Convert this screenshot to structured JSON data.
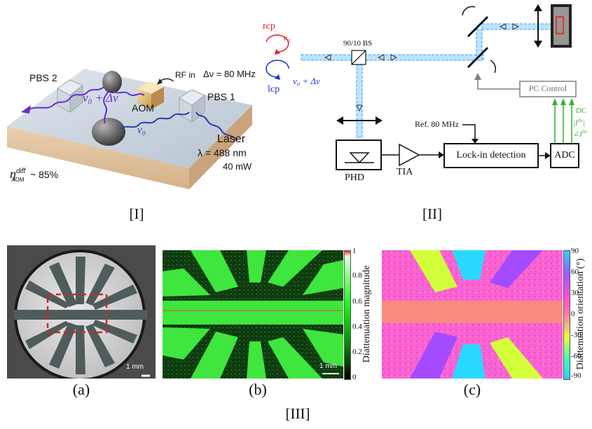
{
  "panel_I": {
    "caption": "[I]",
    "labels": {
      "pbs2": "PBS 2",
      "pbs1": "PBS 1",
      "aom": "AOM",
      "rf_in": "RF in",
      "delta_nu": "Δν = 80 MHz",
      "nu0_plus": "ν₀ + Δν",
      "nu0": "ν₀",
      "laser": "Laser",
      "lambda": "λ = 488 nm",
      "power": "40 mW",
      "eta": "η",
      "eta_sup": "diff",
      "eta_sub": "AOM",
      "eta_val": "~ 85%"
    }
  },
  "panel_II": {
    "caption": "[II]",
    "labels": {
      "rcp": "rcp",
      "lcp": "lcp",
      "nu0": "ν₀",
      "nu0_plus": "ν₀ + Δν",
      "bs": "90/10 BS",
      "pc_control": "PC Control",
      "ref": "Ref. 80 MHz",
      "lockin": "Lock-in detection",
      "adc": "ADC",
      "phd": "PHD",
      "tia": "TIA",
      "dc": "DC",
      "amp": "|I",
      "amp_sup": "Δν",
      "phase": "∠I",
      "phase_sup": "Δν"
    }
  },
  "panel_III": {
    "caption": "[III]",
    "sub_a": "(a)",
    "sub_b": "(b)",
    "sub_c": "(c)",
    "scale_a": "1 mm",
    "scale_b": "1 mm",
    "cbar_b": {
      "label": "Diattenuation magnitude",
      "ticks": [
        "1",
        "0.8",
        "0.6",
        "0.4",
        "0.2",
        "0"
      ],
      "colors": [
        "#ff2020",
        "#e6ffe0",
        "#1aff1a",
        "#0a7a0a",
        "#000000"
      ]
    },
    "cbar_c": {
      "label": "Diattenuation orientation (°)",
      "ticks": [
        "90",
        "60",
        "30",
        "0",
        "-30",
        "-60",
        "-90"
      ],
      "colors": [
        "#2ad0ff",
        "#9a5bff",
        "#ff4fd8",
        "#ff7ea0",
        "#e6ff40",
        "#40ffb0",
        "#2ad0ff"
      ]
    }
  },
  "colors": {
    "rcp": "#e0202a",
    "lcp": "#2030d0",
    "beam": "#2aa4ff",
    "green_signal": "#3cb03c",
    "gray_control": "#808080"
  }
}
